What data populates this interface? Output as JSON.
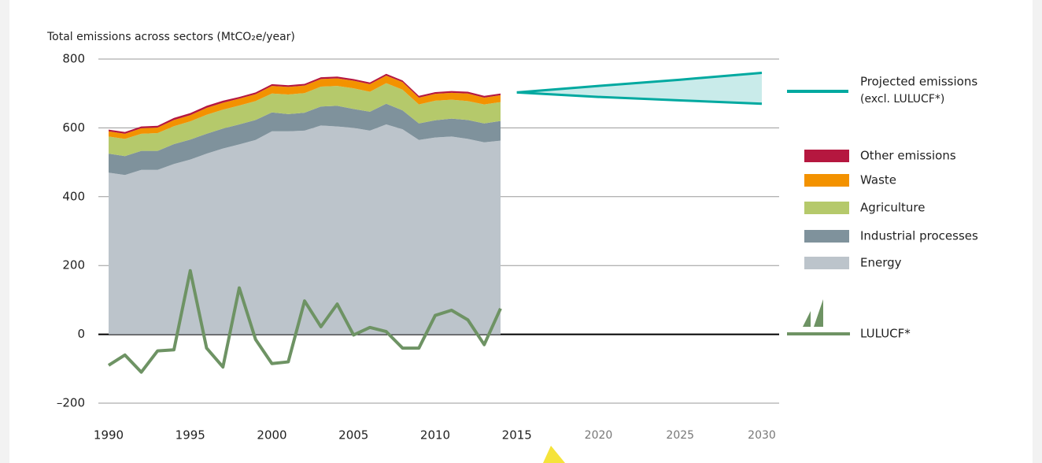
{
  "chart_data": {
    "type": "stacked_area",
    "ylabel": "Total emissions across sectors (MtCO₂e/year)",
    "x": [
      1990,
      1991,
      1992,
      1993,
      1994,
      1995,
      1996,
      1997,
      1998,
      1999,
      2000,
      2001,
      2002,
      2003,
      2004,
      2005,
      2006,
      2007,
      2008,
      2009,
      2010,
      2011,
      2012,
      2013,
      2014
    ],
    "series": [
      {
        "name": "Energy",
        "color": "#bcc4cb",
        "values": [
          470,
          463,
          478,
          478,
          495,
          508,
          525,
          540,
          552,
          565,
          590,
          590,
          592,
          607,
          604,
          600,
          592,
          610,
          596,
          565,
          572,
          575,
          568,
          558,
          563
        ]
      },
      {
        "name": "Industrial processes",
        "color": "#7f929c",
        "values": [
          55,
          55,
          55,
          55,
          58,
          58,
          58,
          58,
          58,
          58,
          55,
          50,
          52,
          55,
          60,
          55,
          55,
          60,
          55,
          48,
          50,
          52,
          55,
          55,
          57
        ]
      },
      {
        "name": "Agriculture",
        "color": "#b5c96b",
        "values": [
          50,
          50,
          50,
          52,
          52,
          53,
          55,
          55,
          55,
          55,
          55,
          57,
          57,
          58,
          58,
          60,
          58,
          60,
          60,
          55,
          57,
          55,
          55,
          55,
          55
        ]
      },
      {
        "name": "Waste",
        "color": "#f39200",
        "values": [
          15,
          15,
          16,
          16,
          18,
          18,
          20,
          20,
          20,
          20,
          22,
          22,
          22,
          22,
          22,
          22,
          22,
          22,
          22,
          20,
          20,
          20,
          22,
          20,
          20
        ]
      },
      {
        "name": "Other emissions",
        "color": "#b5173f",
        "values": [
          5,
          5,
          5,
          5,
          6,
          6,
          6,
          6,
          5,
          5,
          5,
          5,
          5,
          5,
          5,
          5,
          5,
          5,
          5,
          5,
          5,
          5,
          5,
          5,
          5
        ]
      }
    ],
    "lulucf": {
      "name": "LULUCF*",
      "color": "#6e9364",
      "values": [
        -90,
        -60,
        -110,
        -48,
        -45,
        185,
        -40,
        -95,
        135,
        -15,
        -85,
        -80,
        97,
        22,
        88,
        -2,
        20,
        8,
        -40,
        -40,
        55,
        70,
        42,
        -30,
        75
      ]
    },
    "projection": {
      "name": "Projected emissions",
      "note": "(excl. LULUCF*)",
      "color": "#00a9a0",
      "fill": "#c9ebea",
      "x": [
        2015,
        2020,
        2025,
        2030
      ],
      "upper": [
        703,
        722,
        740,
        760
      ],
      "lower": [
        703,
        690,
        680,
        670
      ]
    },
    "xlim": [
      1990,
      2030
    ],
    "xticks": [
      1990,
      1995,
      2000,
      2005,
      2010,
      2015,
      2020,
      2025,
      2030
    ],
    "ylim": [
      -200,
      800
    ],
    "yticks": [
      {
        "value": -200,
        "label": "–200"
      },
      0,
      200,
      400,
      600,
      800
    ],
    "grid": true
  }
}
